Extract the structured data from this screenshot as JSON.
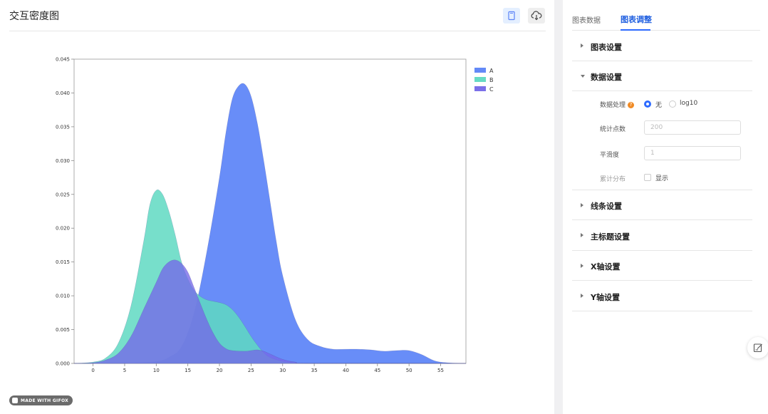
{
  "header": {
    "title": "交互密度图"
  },
  "toolbar": {
    "copy_icon": "copy-icon",
    "download_icon": "cloud-download-icon"
  },
  "badge": {
    "text": "MADE WITH GIFOX"
  },
  "panel": {
    "tabs": [
      {
        "label": "图表数据",
        "active": false
      },
      {
        "label": "图表调整",
        "active": true
      }
    ],
    "sections": [
      {
        "label": "图表设置",
        "expanded": false
      },
      {
        "label": "数据设置",
        "expanded": true
      },
      {
        "label": "线条设置",
        "expanded": false
      },
      {
        "label": "主标题设置",
        "expanded": false
      },
      {
        "label": "X轴设置",
        "expanded": false
      },
      {
        "label": "Y轴设置",
        "expanded": false
      }
    ],
    "data_settings": {
      "processing_label": "数据处理",
      "help_mark": "?",
      "options": [
        {
          "label": "无",
          "selected": true
        },
        {
          "label": "log10",
          "selected": false
        }
      ],
      "points_label": "统计点数",
      "points_placeholder": "200",
      "smooth_label": "平滑度",
      "smooth_placeholder": "1",
      "cumulative_label": "累计分布",
      "show_label": "显示"
    }
  },
  "chart_data": {
    "type": "area",
    "title": "",
    "xlabel": "",
    "ylabel": "",
    "xlim": [
      -3,
      59
    ],
    "ylim": [
      0,
      0.045
    ],
    "x_ticks": [
      0,
      5,
      10,
      15,
      20,
      25,
      30,
      35,
      40,
      45,
      50,
      55
    ],
    "y_ticks": [
      0.0,
      0.005,
      0.01,
      0.015,
      0.02,
      0.025,
      0.03,
      0.035,
      0.04,
      0.045
    ],
    "y_tick_labels": [
      "0.000",
      "0.005",
      "0.010",
      "0.015",
      "0.020",
      "0.025",
      "0.030",
      "0.035",
      "0.040",
      "0.045"
    ],
    "legend_position": "top-right",
    "series": [
      {
        "name": "A",
        "color": "#5b83f7",
        "x": [
          -3,
          0,
          5,
          10,
          12,
          14,
          16,
          18,
          20,
          21,
          22,
          23,
          24,
          25,
          26,
          27,
          28,
          29,
          30,
          32,
          34,
          36,
          38,
          40,
          42,
          44,
          46,
          48,
          50,
          52,
          54,
          56,
          59
        ],
        "y": [
          0,
          0,
          0,
          0.0003,
          0.0009,
          0.0025,
          0.0075,
          0.0165,
          0.0275,
          0.034,
          0.039,
          0.041,
          0.0413,
          0.0395,
          0.0355,
          0.03,
          0.024,
          0.018,
          0.013,
          0.0065,
          0.0035,
          0.0025,
          0.0021,
          0.0021,
          0.0021,
          0.002,
          0.0018,
          0.0019,
          0.0019,
          0.0013,
          0.0004,
          0.0001,
          0
        ]
      },
      {
        "name": "B",
        "color": "#5fd9c2",
        "x": [
          -3,
          0,
          2,
          4,
          6,
          8,
          9,
          10,
          11,
          12,
          13,
          14,
          15,
          16,
          17,
          18,
          19,
          20,
          21,
          22,
          23,
          24,
          25,
          26,
          27,
          28,
          30,
          32,
          35,
          59
        ],
        "y": [
          0,
          0.0002,
          0.0008,
          0.003,
          0.0085,
          0.018,
          0.0235,
          0.0256,
          0.025,
          0.0225,
          0.019,
          0.015,
          0.0125,
          0.0108,
          0.0099,
          0.0094,
          0.0092,
          0.009,
          0.0087,
          0.008,
          0.0069,
          0.0055,
          0.004,
          0.0027,
          0.0016,
          0.0009,
          0.0003,
          0.0001,
          0,
          0
        ]
      },
      {
        "name": "C",
        "color": "#7468e8",
        "x": [
          -3,
          0,
          2,
          4,
          6,
          8,
          10,
          11,
          12,
          13,
          14,
          15,
          16,
          17,
          18,
          19,
          20,
          21,
          22,
          24,
          25,
          26,
          27,
          28,
          30,
          32,
          35,
          59
        ],
        "y": [
          0,
          0.0001,
          0.0005,
          0.0015,
          0.004,
          0.008,
          0.012,
          0.014,
          0.015,
          0.0153,
          0.0148,
          0.0135,
          0.0112,
          0.0088,
          0.0065,
          0.0045,
          0.003,
          0.0022,
          0.0019,
          0.0018,
          0.0019,
          0.002,
          0.0018,
          0.0014,
          0.0006,
          0.0002,
          0,
          0
        ]
      }
    ]
  }
}
